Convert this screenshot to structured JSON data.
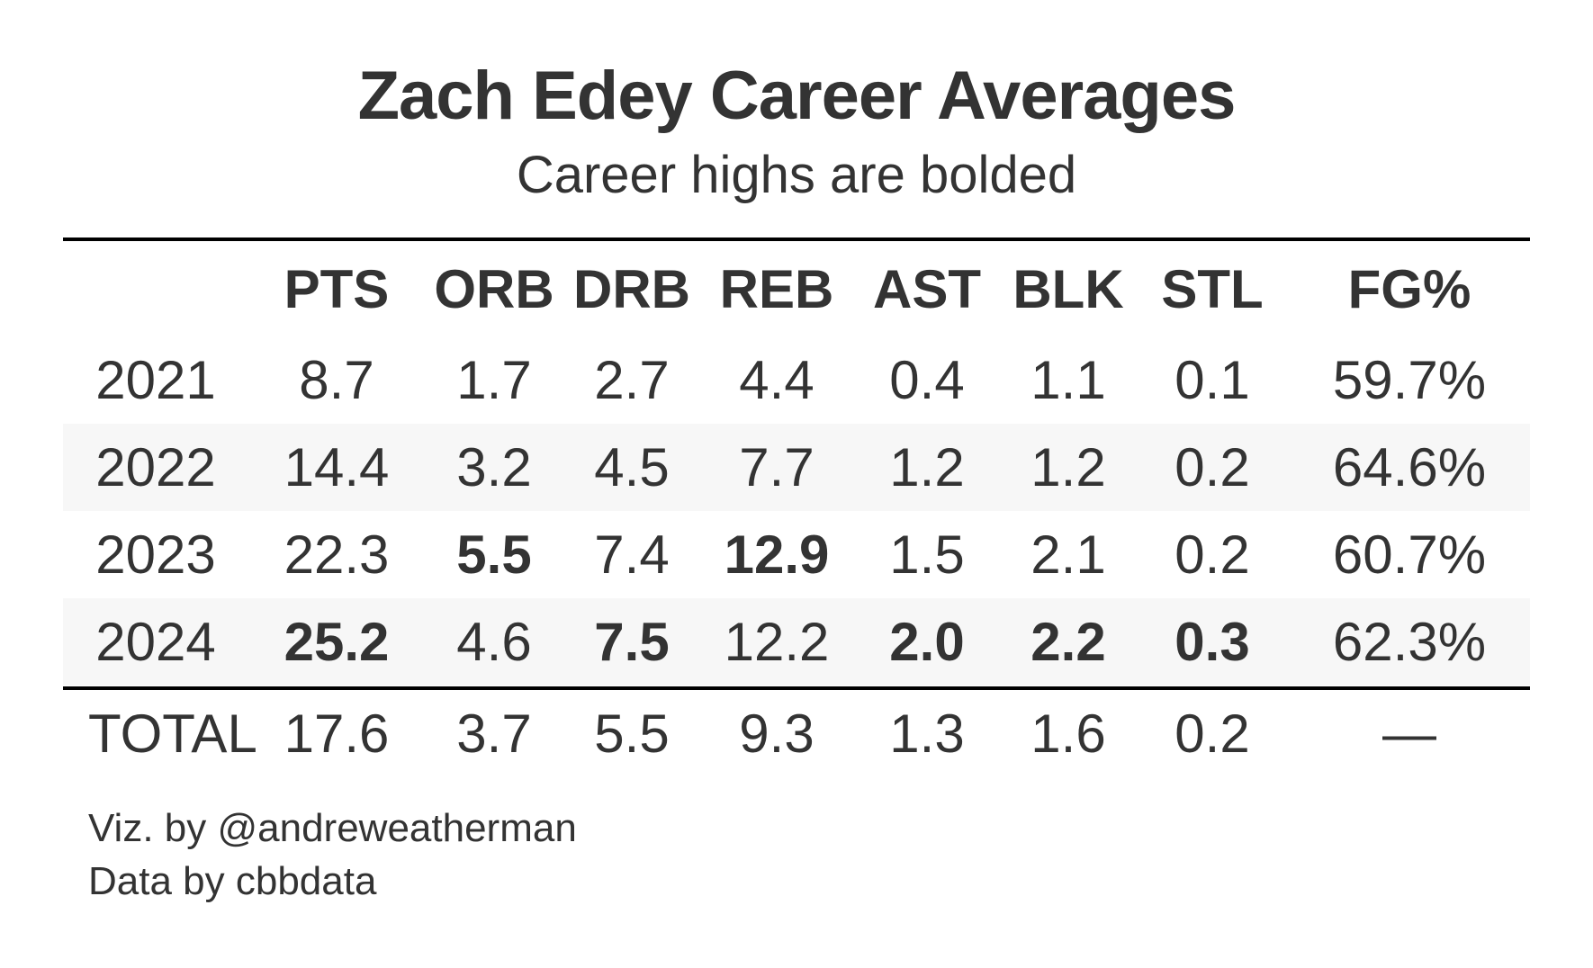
{
  "chart_data": {
    "type": "table",
    "title": "Zach Edey Career Averages",
    "subtitle": "Career highs are bolded",
    "columns": [
      "",
      "PTS",
      "ORB",
      "DRB",
      "REB",
      "AST",
      "BLK",
      "STL",
      "FG%"
    ],
    "rows": [
      {
        "label": "2021",
        "values": [
          "8.7",
          "1.7",
          "2.7",
          "4.4",
          "0.4",
          "1.1",
          "0.1",
          "59.7%"
        ],
        "bold": [
          false,
          false,
          false,
          false,
          false,
          false,
          false,
          false
        ]
      },
      {
        "label": "2022",
        "values": [
          "14.4",
          "3.2",
          "4.5",
          "7.7",
          "1.2",
          "1.2",
          "0.2",
          "64.6%"
        ],
        "bold": [
          false,
          false,
          false,
          false,
          false,
          false,
          false,
          false
        ]
      },
      {
        "label": "2023",
        "values": [
          "22.3",
          "5.5",
          "7.4",
          "12.9",
          "1.5",
          "2.1",
          "0.2",
          "60.7%"
        ],
        "bold": [
          false,
          true,
          false,
          true,
          false,
          false,
          false,
          false
        ]
      },
      {
        "label": "2024",
        "values": [
          "25.2",
          "4.6",
          "7.5",
          "12.2",
          "2.0",
          "2.2",
          "0.3",
          "62.3%"
        ],
        "bold": [
          true,
          false,
          true,
          false,
          true,
          true,
          true,
          false
        ]
      }
    ],
    "total": {
      "label": "TOTAL",
      "values": [
        "17.6",
        "3.7",
        "5.5",
        "9.3",
        "1.3",
        "1.6",
        "0.2",
        "—"
      ]
    },
    "striped_rows": [
      1,
      3
    ],
    "caption": [
      "Viz. by @andreweatherman",
      "Data by cbbdata"
    ]
  },
  "colors": {
    "text": "#333333",
    "rule": "#000000",
    "stripe": "#f7f7f7",
    "background": "#ffffff"
  }
}
